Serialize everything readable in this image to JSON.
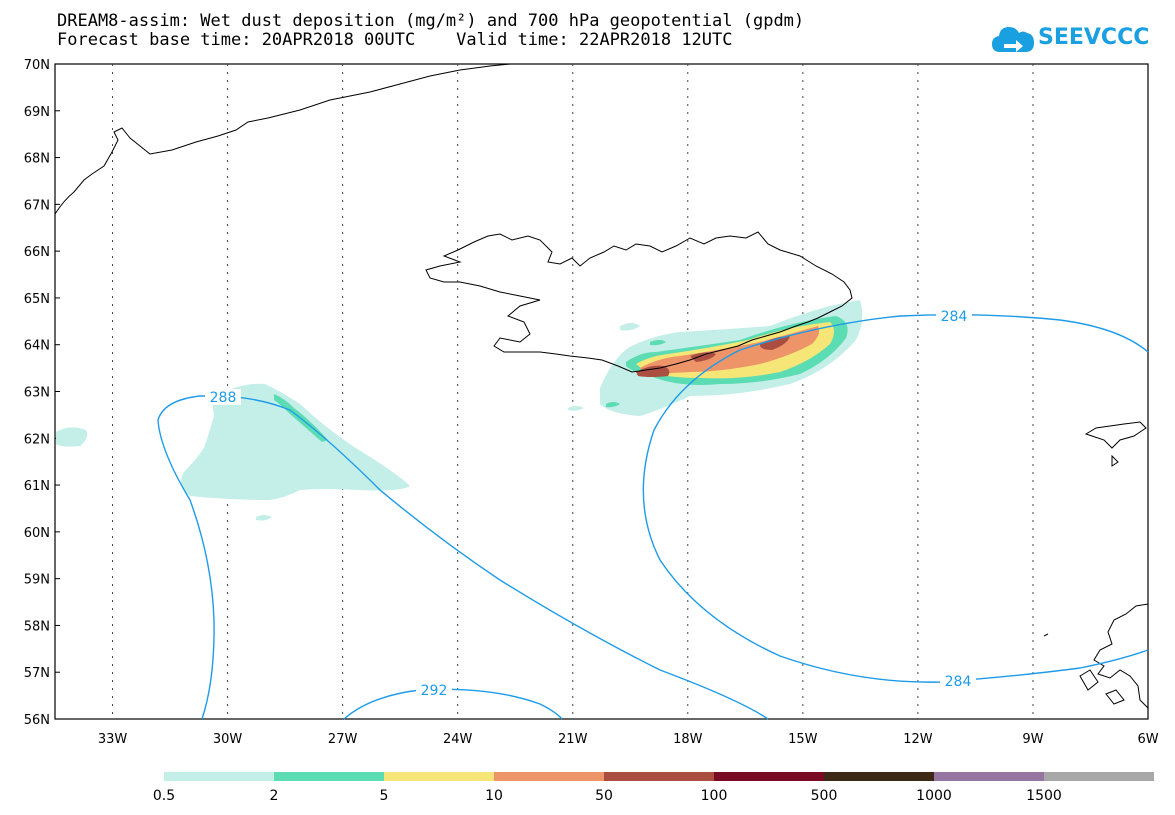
{
  "title": {
    "line1": "DREAM8-assim: Wet dust deposition (mg/m²) and 700 hPa geopotential (gpdm)",
    "line2": "Forecast base time: 20APR2018 00UTC    Valid time: 22APR2018 12UTC"
  },
  "logo": {
    "text": "SEEVCCC",
    "icon": "cloud-arrow-icon",
    "color": "#1aa0e0"
  },
  "map": {
    "lat_labels": [
      "70N",
      "69N",
      "68N",
      "67N",
      "66N",
      "65N",
      "64N",
      "63N",
      "62N",
      "61N",
      "60N",
      "59N",
      "58N",
      "57N",
      "56N"
    ],
    "lon_labels": [
      "33W",
      "30W",
      "27W",
      "24W",
      "21W",
      "18W",
      "15W",
      "12W",
      "9W",
      "6W"
    ],
    "lat_range": [
      56,
      70
    ],
    "lon_range": [
      -34.5,
      -6
    ],
    "contour_labels": [
      "288",
      "284",
      "284",
      "292"
    ],
    "contour_color": "#1e9be8"
  },
  "colorbar": {
    "labels": [
      "0.5",
      "2",
      "5",
      "10",
      "50",
      "100",
      "500",
      "1000",
      "1500"
    ],
    "colors": [
      "#c4eee8",
      "#5cdcb2",
      "#f6e677",
      "#ed9469",
      "#aa4e42",
      "#7a0b24",
      "#3d2a16",
      "#9675a3",
      "#a8a8a8"
    ]
  }
}
